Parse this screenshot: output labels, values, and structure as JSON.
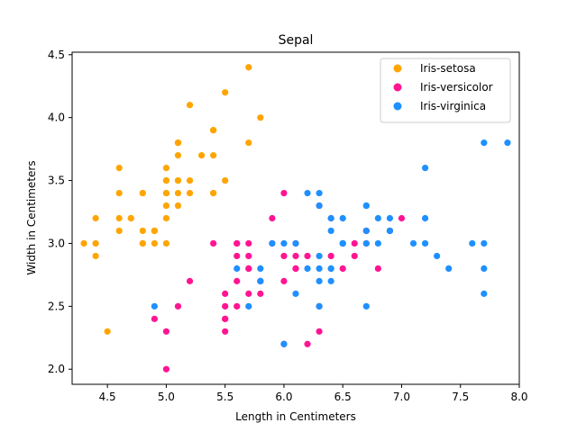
{
  "chart_data": {
    "type": "scatter",
    "title": "Sepal",
    "xlabel": "Length in Centimeters",
    "ylabel": "Width in Centimeters",
    "xlim": [
      4.2,
      8.0
    ],
    "ylim": [
      1.88,
      4.52
    ],
    "xticks": [
      4.5,
      5.0,
      5.5,
      6.0,
      6.5,
      7.0,
      7.5,
      8.0
    ],
    "xtick_labels": [
      "4.5",
      "5.0",
      "5.5",
      "6.0",
      "6.5",
      "7.0",
      "7.5",
      "8.0"
    ],
    "yticks": [
      2.0,
      2.5,
      3.0,
      3.5,
      4.0,
      4.5
    ],
    "ytick_labels": [
      "2.0",
      "2.5",
      "3.0",
      "3.5",
      "4.0",
      "4.5"
    ],
    "grid": false,
    "legend_position": "top-right",
    "series": [
      {
        "name": "Iris-setosa",
        "color": "#ffa500",
        "points": [
          [
            5.1,
            3.5
          ],
          [
            4.9,
            3.0
          ],
          [
            4.7,
            3.2
          ],
          [
            4.6,
            3.1
          ],
          [
            5.0,
            3.6
          ],
          [
            5.4,
            3.9
          ],
          [
            4.6,
            3.4
          ],
          [
            5.0,
            3.4
          ],
          [
            4.4,
            2.9
          ],
          [
            4.9,
            3.1
          ],
          [
            5.4,
            3.7
          ],
          [
            4.8,
            3.4
          ],
          [
            4.8,
            3.0
          ],
          [
            4.3,
            3.0
          ],
          [
            5.8,
            4.0
          ],
          [
            5.7,
            4.4
          ],
          [
            5.4,
            3.9
          ],
          [
            5.1,
            3.5
          ],
          [
            5.7,
            3.8
          ],
          [
            5.1,
            3.8
          ],
          [
            5.4,
            3.4
          ],
          [
            5.1,
            3.7
          ],
          [
            4.6,
            3.6
          ],
          [
            5.1,
            3.3
          ],
          [
            4.8,
            3.4
          ],
          [
            5.0,
            3.0
          ],
          [
            5.0,
            3.4
          ],
          [
            5.2,
            3.5
          ],
          [
            5.2,
            3.4
          ],
          [
            4.7,
            3.2
          ],
          [
            4.8,
            3.1
          ],
          [
            5.4,
            3.4
          ],
          [
            5.2,
            4.1
          ],
          [
            5.5,
            4.2
          ],
          [
            4.9,
            3.1
          ],
          [
            5.0,
            3.2
          ],
          [
            5.5,
            3.5
          ],
          [
            4.9,
            3.1
          ],
          [
            4.4,
            3.0
          ],
          [
            5.1,
            3.4
          ],
          [
            5.0,
            3.5
          ],
          [
            4.5,
            2.3
          ],
          [
            4.4,
            3.2
          ],
          [
            5.0,
            3.5
          ],
          [
            5.1,
            3.8
          ],
          [
            4.8,
            3.0
          ],
          [
            5.1,
            3.8
          ],
          [
            4.6,
            3.2
          ],
          [
            5.3,
            3.7
          ],
          [
            5.0,
            3.3
          ]
        ]
      },
      {
        "name": "Iris-versicolor",
        "color": "#ff1493",
        "points": [
          [
            7.0,
            3.2
          ],
          [
            6.4,
            3.2
          ],
          [
            6.9,
            3.1
          ],
          [
            5.5,
            2.3
          ],
          [
            6.5,
            2.8
          ],
          [
            5.7,
            2.8
          ],
          [
            6.3,
            3.3
          ],
          [
            4.9,
            2.4
          ],
          [
            6.6,
            2.9
          ],
          [
            5.2,
            2.7
          ],
          [
            5.0,
            2.0
          ],
          [
            5.9,
            3.0
          ],
          [
            6.0,
            2.2
          ],
          [
            6.1,
            2.9
          ],
          [
            5.6,
            2.9
          ],
          [
            6.7,
            3.1
          ],
          [
            5.6,
            3.0
          ],
          [
            5.8,
            2.7
          ],
          [
            6.2,
            2.2
          ],
          [
            5.6,
            2.5
          ],
          [
            5.9,
            3.2
          ],
          [
            6.1,
            2.8
          ],
          [
            6.3,
            2.5
          ],
          [
            6.1,
            2.8
          ],
          [
            6.4,
            2.9
          ],
          [
            6.6,
            3.0
          ],
          [
            6.8,
            2.8
          ],
          [
            6.7,
            3.0
          ],
          [
            6.0,
            2.9
          ],
          [
            5.7,
            2.6
          ],
          [
            5.5,
            2.4
          ],
          [
            5.5,
            2.4
          ],
          [
            5.8,
            2.7
          ],
          [
            6.0,
            2.7
          ],
          [
            5.4,
            3.0
          ],
          [
            6.0,
            3.4
          ],
          [
            6.7,
            3.1
          ],
          [
            6.3,
            2.3
          ],
          [
            5.6,
            3.0
          ],
          [
            5.5,
            2.5
          ],
          [
            5.5,
            2.6
          ],
          [
            6.1,
            3.0
          ],
          [
            5.8,
            2.6
          ],
          [
            5.0,
            2.3
          ],
          [
            5.6,
            2.7
          ],
          [
            5.7,
            3.0
          ],
          [
            5.7,
            2.9
          ],
          [
            6.2,
            2.9
          ],
          [
            5.1,
            2.5
          ],
          [
            5.7,
            2.8
          ]
        ]
      },
      {
        "name": "Iris-virginica",
        "color": "#1e90ff",
        "points": [
          [
            6.3,
            3.3
          ],
          [
            5.8,
            2.7
          ],
          [
            7.1,
            3.0
          ],
          [
            6.3,
            2.9
          ],
          [
            6.5,
            3.0
          ],
          [
            7.6,
            3.0
          ],
          [
            4.9,
            2.5
          ],
          [
            7.3,
            2.9
          ],
          [
            6.7,
            2.5
          ],
          [
            7.2,
            3.6
          ],
          [
            6.5,
            3.2
          ],
          [
            6.4,
            2.7
          ],
          [
            6.8,
            3.0
          ],
          [
            5.7,
            2.5
          ],
          [
            5.8,
            2.8
          ],
          [
            6.4,
            3.2
          ],
          [
            6.5,
            3.0
          ],
          [
            7.7,
            3.8
          ],
          [
            7.7,
            2.6
          ],
          [
            6.0,
            2.2
          ],
          [
            6.9,
            3.2
          ],
          [
            5.6,
            2.8
          ],
          [
            7.7,
            2.8
          ],
          [
            6.3,
            2.7
          ],
          [
            6.7,
            3.3
          ],
          [
            7.2,
            3.2
          ],
          [
            6.2,
            2.8
          ],
          [
            6.1,
            3.0
          ],
          [
            6.4,
            2.8
          ],
          [
            7.2,
            3.0
          ],
          [
            7.4,
            2.8
          ],
          [
            7.9,
            3.8
          ],
          [
            6.4,
            2.8
          ],
          [
            6.3,
            2.8
          ],
          [
            6.1,
            2.6
          ],
          [
            7.7,
            3.0
          ],
          [
            6.3,
            3.4
          ],
          [
            6.4,
            3.1
          ],
          [
            6.0,
            3.0
          ],
          [
            6.9,
            3.1
          ],
          [
            6.7,
            3.1
          ],
          [
            6.9,
            3.1
          ],
          [
            5.8,
            2.7
          ],
          [
            6.8,
            3.2
          ],
          [
            6.7,
            3.3
          ],
          [
            6.7,
            3.0
          ],
          [
            6.3,
            2.5
          ],
          [
            6.5,
            3.0
          ],
          [
            6.2,
            3.4
          ],
          [
            5.9,
            3.0
          ]
        ]
      }
    ]
  }
}
